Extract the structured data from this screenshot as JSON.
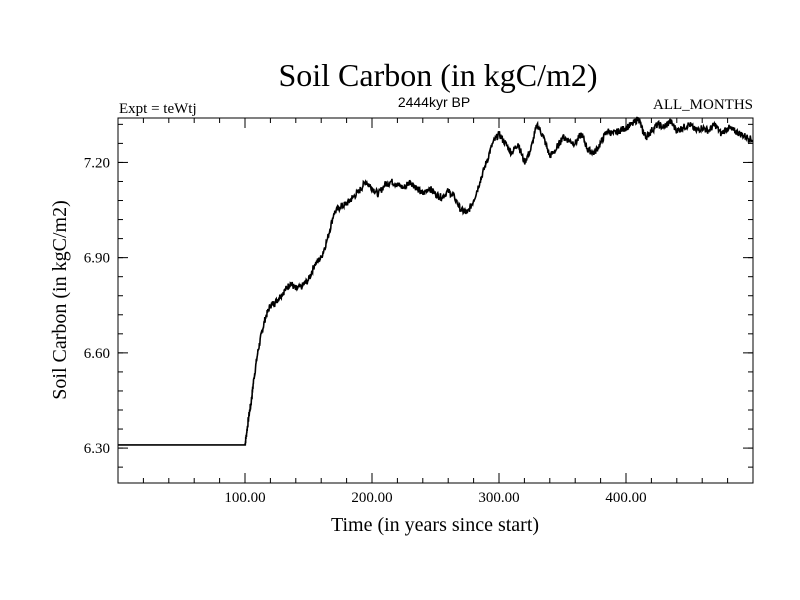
{
  "colors": {
    "background": "#ffffff",
    "line": "#000000",
    "axis": "#000000"
  },
  "chart_data": {
    "type": "line",
    "title": "Soil Carbon (in kgC/m2)",
    "subtitle_left": "Expt = teWtj",
    "subtitle_center": "2444kyr BP",
    "subtitle_right": "ALL_MONTHS",
    "xlabel": "Time (in years since start)",
    "ylabel": "Soil Carbon (in kgC/m2)",
    "xlim": [
      0,
      500
    ],
    "ylim": [
      6.19,
      7.34
    ],
    "x_ticks": [
      {
        "value": 100,
        "label": "100.00"
      },
      {
        "value": 200,
        "label": "200.00"
      },
      {
        "value": 300,
        "label": "300.00"
      },
      {
        "value": 400,
        "label": "400.00"
      }
    ],
    "x_minor_step": 20,
    "y_ticks": [
      {
        "value": 6.3,
        "label": "6.30"
      },
      {
        "value": 6.6,
        "label": "6.60"
      },
      {
        "value": 6.9,
        "label": "6.90"
      },
      {
        "value": 7.2,
        "label": "7.20"
      }
    ],
    "y_minor_step": 0.06,
    "series": [
      {
        "name": "Soil Carbon",
        "x": [
          0,
          100,
          101,
          103,
          105,
          107,
          110,
          113,
          116,
          120,
          124,
          128,
          132,
          136,
          140,
          145,
          150,
          155,
          160,
          165,
          170,
          175,
          180,
          185,
          190,
          195,
          200,
          205,
          210,
          215,
          220,
          225,
          230,
          235,
          240,
          245,
          250,
          255,
          260,
          265,
          270,
          275,
          280,
          285,
          290,
          295,
          300,
          305,
          310,
          315,
          320,
          325,
          330,
          335,
          340,
          345,
          350,
          355,
          360,
          365,
          370,
          375,
          380,
          385,
          390,
          395,
          400,
          405,
          410,
          413,
          416,
          420,
          425,
          430,
          435,
          440,
          445,
          450,
          455,
          460,
          465,
          470,
          475,
          480,
          485,
          490,
          495,
          500
        ],
        "values": [
          6.31,
          6.31,
          6.34,
          6.4,
          6.45,
          6.52,
          6.6,
          6.66,
          6.71,
          6.75,
          6.76,
          6.78,
          6.8,
          6.82,
          6.8,
          6.81,
          6.83,
          6.88,
          6.9,
          6.96,
          7.04,
          7.06,
          7.07,
          7.09,
          7.11,
          7.14,
          7.12,
          7.1,
          7.13,
          7.14,
          7.13,
          7.12,
          7.14,
          7.12,
          7.1,
          7.12,
          7.1,
          7.09,
          7.11,
          7.09,
          7.05,
          7.04,
          7.08,
          7.14,
          7.2,
          7.26,
          7.29,
          7.26,
          7.23,
          7.26,
          7.2,
          7.24,
          7.32,
          7.28,
          7.22,
          7.24,
          7.28,
          7.27,
          7.26,
          7.29,
          7.24,
          7.23,
          7.26,
          7.3,
          7.29,
          7.3,
          7.31,
          7.32,
          7.34,
          7.3,
          7.28,
          7.3,
          7.32,
          7.31,
          7.33,
          7.3,
          7.31,
          7.32,
          7.3,
          7.31,
          7.3,
          7.32,
          7.29,
          7.31,
          7.3,
          7.29,
          7.28,
          7.27
        ]
      }
    ]
  }
}
